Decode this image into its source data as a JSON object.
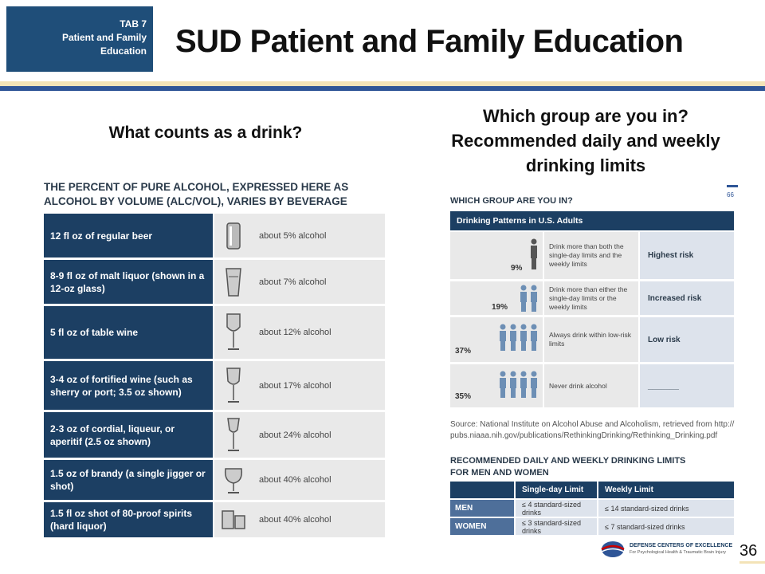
{
  "tab": {
    "line1": "TAB 7",
    "line2": "Patient and Family",
    "line3": "Education"
  },
  "title": "SUD Patient and Family Education",
  "left_heading": "What counts as a drink?",
  "right_heading": {
    "line1": "Which group are you in?",
    "line2": "Recommended daily and weekly",
    "line3": "drinking limits"
  },
  "left_table": {
    "heading_line1": "THE PERCENT OF PURE ALCOHOL, EXPRESSED HERE AS",
    "heading_line2": "ALCOHOL BY VOLUME (ALC/VOL), VARIES BY BEVERAGE",
    "rows": [
      {
        "label": "12 fl oz of regular beer",
        "pct": "about 5% alcohol",
        "icon": "beer-can-icon"
      },
      {
        "label": "8-9 fl oz of malt liquor (shown in a 12-oz glass)",
        "pct": "about 7% alcohol",
        "icon": "pint-glass-icon"
      },
      {
        "label": "5 fl oz of table wine",
        "pct": "about 12% alcohol",
        "icon": "wine-glass-icon"
      },
      {
        "label": "3-4 oz of fortified wine (such as sherry or port; 3.5 oz shown)",
        "pct": "about 17% alcohol",
        "icon": "fortified-wine-glass-icon"
      },
      {
        "label": "2-3 oz of cordial, liqueur, or aperitif (2.5 oz shown)",
        "pct": "about 24% alcohol",
        "icon": "cordial-glass-icon"
      },
      {
        "label": "1.5 oz of brandy (a single jigger or shot)",
        "pct": "about 40% alcohol",
        "icon": "brandy-glass-icon"
      },
      {
        "label": "1.5 fl oz shot of 80-proof spirits (hard liquor)",
        "pct": "about 40% alcohol",
        "icon": "shot-glass-icon"
      }
    ]
  },
  "right_panel": {
    "page_num": "66",
    "title": "WHICH GROUP ARE YOU IN?",
    "bar": "Drinking Patterns in U.S. Adults",
    "rows": [
      {
        "pct": "9%",
        "desc": "Drink more than both the single-day limits and the weekly limits",
        "risk": "Highest risk"
      },
      {
        "pct": "19%",
        "desc": "Drink more than either the single-day limits or the weekly limits",
        "risk": "Increased risk"
      },
      {
        "pct": "37%",
        "desc": "Always drink within low-risk limits",
        "risk": "Low risk"
      },
      {
        "pct": "35%",
        "desc": "Never drink alcohol",
        "risk": "_______"
      }
    ],
    "source": "Source: National Institute on Alcohol Abuse and Alcoholism, retrieved from http:// pubs.niaaa.nih.gov/publications/RethinkingDrinking/Rethinking_Drinking.pdf",
    "rec_title": "RECOMMENDED DAILY AND WEEKLY DRINKING LIMITS FOR MEN AND WOMEN",
    "rec_table": {
      "headers": [
        "",
        "Single-day Limit",
        "Weekly Limit"
      ],
      "rows": [
        {
          "group": "MEN",
          "day": "≤ 4 standard-sized drinks",
          "week": "≤ 14 standard-sized drinks"
        },
        {
          "group": "WOMEN",
          "day": "≤ 3 standard-sized drinks",
          "week": "≤ 7 standard-sized drinks"
        }
      ]
    }
  },
  "footer": {
    "org": "DEFENSE CENTERS OF EXCELLENCE",
    "sub": "For Psychological Health & Traumatic Brain Injury",
    "page": "36"
  }
}
